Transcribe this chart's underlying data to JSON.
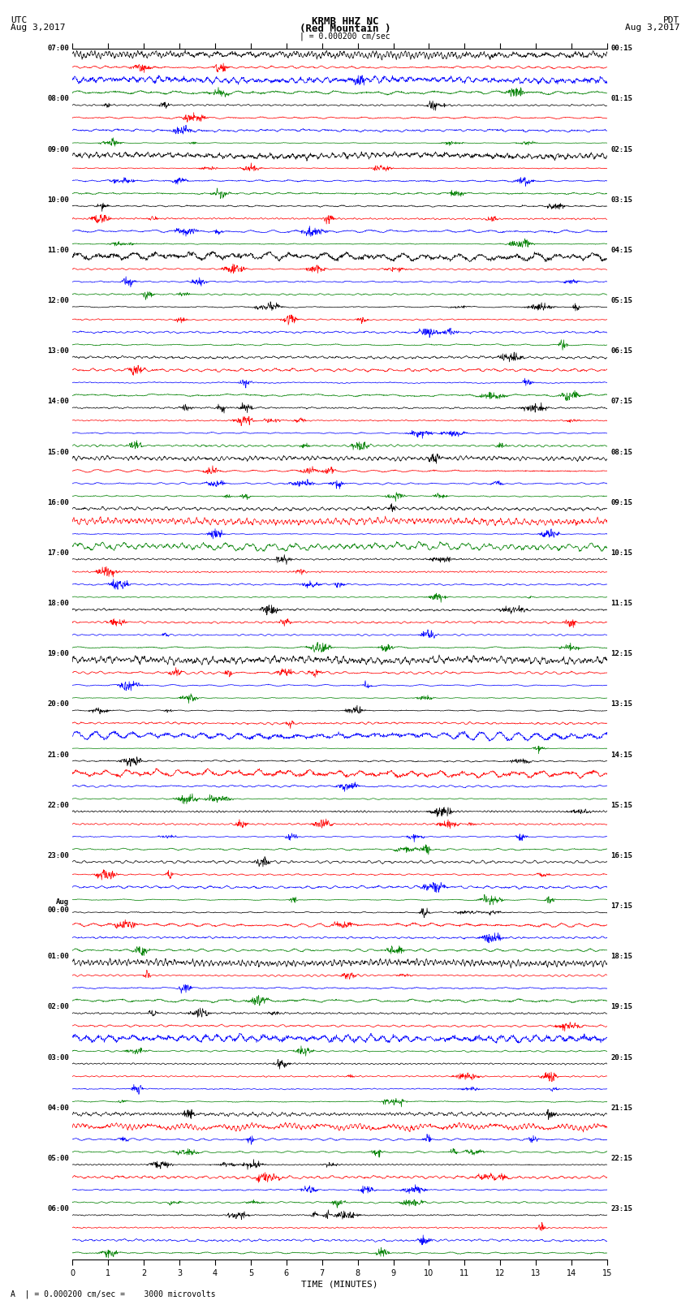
{
  "title_line1": "KRMB HHZ NC",
  "title_line2": "(Red Mountain )",
  "title_scale": "| = 0.000200 cm/sec",
  "left_header_line1": "UTC",
  "left_header_line2": "Aug 3,2017",
  "right_header_line1": "PDT",
  "right_header_line2": "Aug 3,2017",
  "xlabel": "TIME (MINUTES)",
  "footer_text": "A  | = 0.000200 cm/sec =    3000 microvolts",
  "time_axis_max": 15,
  "trace_colors": [
    "black",
    "red",
    "blue",
    "green"
  ],
  "background_color": "white",
  "left_times_utc": [
    "07:00",
    "08:00",
    "09:00",
    "10:00",
    "11:00",
    "12:00",
    "13:00",
    "14:00",
    "15:00",
    "16:00",
    "17:00",
    "18:00",
    "19:00",
    "20:00",
    "21:00",
    "22:00",
    "23:00",
    "Aug\n00:00",
    "01:00",
    "02:00",
    "03:00",
    "04:00",
    "05:00",
    "06:00"
  ],
  "right_times_pdt": [
    "00:15",
    "01:15",
    "02:15",
    "03:15",
    "04:15",
    "05:15",
    "06:15",
    "07:15",
    "08:15",
    "09:15",
    "10:15",
    "11:15",
    "12:15",
    "13:15",
    "14:15",
    "15:15",
    "16:15",
    "17:15",
    "18:15",
    "19:15",
    "20:15",
    "21:15",
    "22:15",
    "23:15"
  ],
  "n_hour_blocks": 24,
  "traces_per_block": 4,
  "seed": 42
}
